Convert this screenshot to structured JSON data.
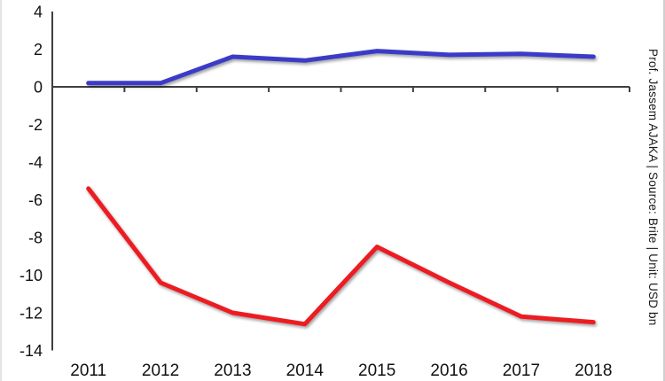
{
  "watermark": "Prof. Jassem AJAKA | Source: Brite | Unit: USD bn",
  "chart_data": {
    "type": "line",
    "title": "",
    "categories": [
      "2011",
      "2012",
      "2013",
      "2014",
      "2015",
      "2016",
      "2017",
      "2018"
    ],
    "series": [
      {
        "key": "blue",
        "color": "#3b3bc8",
        "values": [
          0.2,
          0.2,
          1.6,
          1.4,
          1.9,
          1.7,
          1.75,
          1.6
        ]
      },
      {
        "key": "red",
        "color": "#ec1c24",
        "values": [
          -5.4,
          -10.4,
          -12.0,
          -12.6,
          -8.5,
          -10.4,
          -12.2,
          -12.5
        ]
      }
    ],
    "ylim": [
      -14,
      4
    ],
    "ytick_step": 2,
    "ytick_labels": [
      "4",
      "2",
      "0",
      "-2",
      "-4",
      "-6",
      "-8",
      "-10",
      "-12",
      "-14"
    ],
    "xtick_labels": [
      "2011",
      "2012",
      "2013",
      "2014",
      "2015",
      "2016",
      "2017",
      "2018"
    ],
    "grid": false,
    "legend_position": "none",
    "axis_color": "#3f3f3f"
  }
}
